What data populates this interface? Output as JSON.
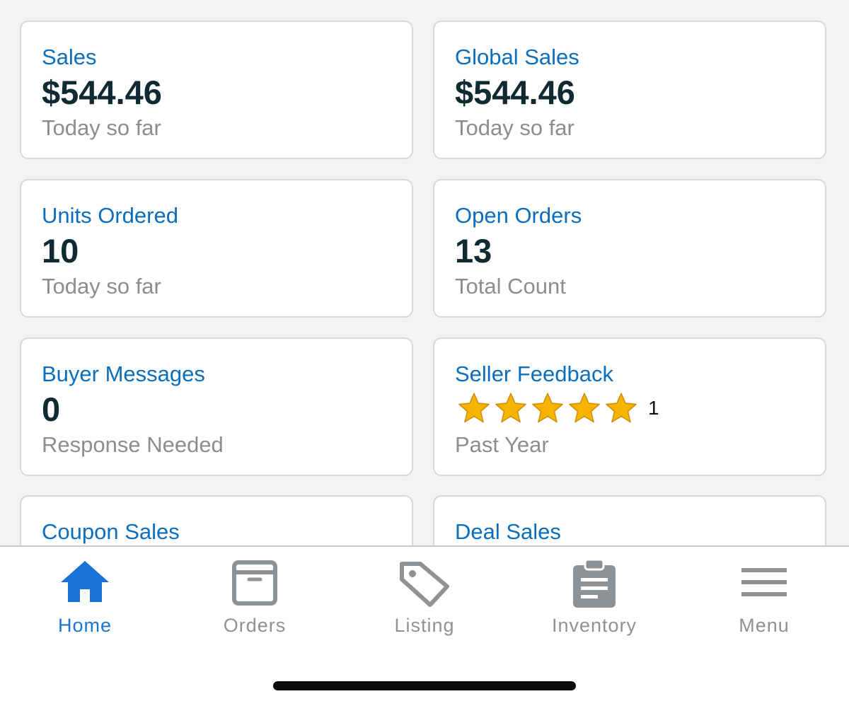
{
  "cards": [
    {
      "title": "Sales",
      "value": "$544.46",
      "sub": "Today so far"
    },
    {
      "title": "Global Sales",
      "value": "$544.46",
      "sub": "Today so far"
    },
    {
      "title": "Units Ordered",
      "value": "10",
      "sub": "Today so far"
    },
    {
      "title": "Open Orders",
      "value": "13",
      "sub": "Total Count"
    },
    {
      "title": "Buyer Messages",
      "value": "0",
      "sub": "Response Needed"
    },
    {
      "title": "Seller Feedback",
      "rating": 5,
      "rating_max": 5,
      "rating_count": "1",
      "sub": "Past Year"
    },
    {
      "title": "Coupon Sales"
    },
    {
      "title": "Deal Sales"
    }
  ],
  "tabs": [
    {
      "label": "Home",
      "icon": "home-icon",
      "active": true
    },
    {
      "label": "Orders",
      "icon": "box-icon",
      "active": false
    },
    {
      "label": "Listing",
      "icon": "tag-icon",
      "active": false
    },
    {
      "label": "Inventory",
      "icon": "clipboard-icon",
      "active": false
    },
    {
      "label": "Menu",
      "icon": "hamburger-icon",
      "active": false
    }
  ],
  "colors": {
    "title": "#0a6ebd",
    "value": "#0f2a33",
    "sub": "#8a8e91",
    "star": "#f5b400",
    "tab_active": "#1a73d6",
    "tab_inactive": "#8e9295"
  }
}
